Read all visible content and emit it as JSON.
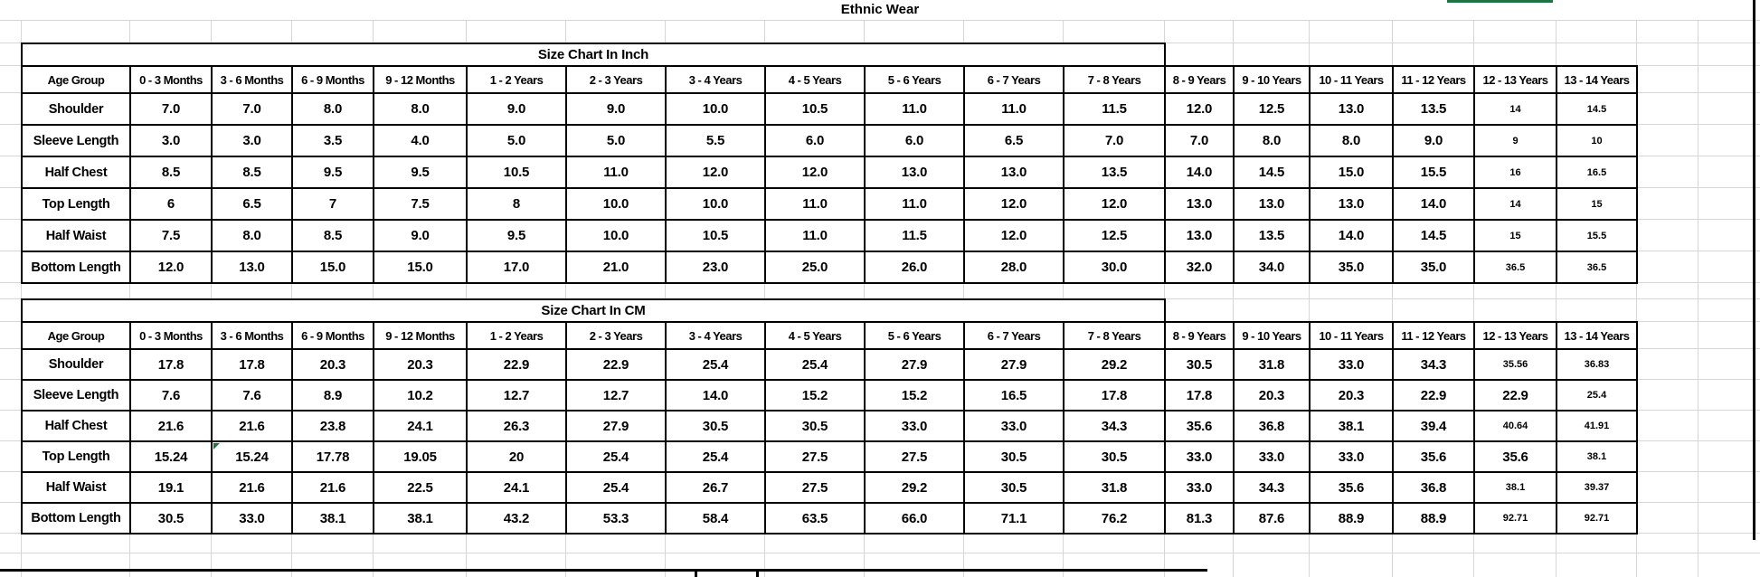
{
  "page": {
    "title": "Ethnic Wear"
  },
  "colors": {
    "accent_green": "#217346",
    "grid_line": "#d6d6d6",
    "table_border": "#000000",
    "text": "#000000"
  },
  "tables": [
    {
      "title": "Size Chart In Inch",
      "columns": [
        "Age Group",
        "0 - 3 Months",
        "3 - 6 Months",
        "6 - 9 Months",
        "9 - 12 Months",
        "1 - 2 Years",
        "2 - 3 Years",
        "3 - 4 Years",
        "4 - 5 Years",
        "5 - 6 Years",
        "6 - 7 Years",
        "7 - 8 Years",
        "8 - 9 Years",
        "9 - 10 Years",
        "10 - 11 Years",
        "11 - 12 Years",
        "12 - 13 Years",
        "13 - 14 Years"
      ],
      "rows": [
        {
          "label": "Shoulder",
          "values": [
            "7.0",
            "7.0",
            "8.0",
            "8.0",
            "9.0",
            "9.0",
            "10.0",
            "10.5",
            "11.0",
            "11.0",
            "11.5",
            "12.0",
            "12.5",
            "13.0",
            "13.5",
            "14",
            "14.5"
          ],
          "small": [
            15,
            16
          ]
        },
        {
          "label": "Sleeve Length",
          "values": [
            "3.0",
            "3.0",
            "3.5",
            "4.0",
            "5.0",
            "5.0",
            "5.5",
            "6.0",
            "6.0",
            "6.5",
            "7.0",
            "7.0",
            "8.0",
            "8.0",
            "9.0",
            "9",
            "10"
          ],
          "small": [
            15,
            16
          ]
        },
        {
          "label": "Half Chest",
          "values": [
            "8.5",
            "8.5",
            "9.5",
            "9.5",
            "10.5",
            "11.0",
            "12.0",
            "12.0",
            "13.0",
            "13.0",
            "13.5",
            "14.0",
            "14.5",
            "15.0",
            "15.5",
            "16",
            "16.5"
          ],
          "small": [
            15,
            16
          ]
        },
        {
          "label": "Top Length",
          "values": [
            "6",
            "6.5",
            "7",
            "7.5",
            "8",
            "10.0",
            "10.0",
            "11.0",
            "11.0",
            "12.0",
            "12.0",
            "13.0",
            "13.0",
            "13.0",
            "14.0",
            "14",
            "15"
          ],
          "small": [
            15,
            16
          ]
        },
        {
          "label": "Half Waist",
          "values": [
            "7.5",
            "8.0",
            "8.5",
            "9.0",
            "9.5",
            "10.0",
            "10.5",
            "11.0",
            "11.5",
            "12.0",
            "12.5",
            "13.0",
            "13.5",
            "14.0",
            "14.5",
            "15",
            "15.5"
          ],
          "small": [
            15,
            16
          ]
        },
        {
          "label": "Bottom Length",
          "values": [
            "12.0",
            "13.0",
            "15.0",
            "15.0",
            "17.0",
            "21.0",
            "23.0",
            "25.0",
            "26.0",
            "28.0",
            "30.0",
            "32.0",
            "34.0",
            "35.0",
            "35.0",
            "36.5",
            "36.5"
          ],
          "small": [
            15,
            16
          ]
        }
      ]
    },
    {
      "title": "Size Chart In CM",
      "columns": [
        "Age Group",
        "0 - 3 Months",
        "3 - 6 Months",
        "6 - 9 Months",
        "9 - 12 Months",
        "1 - 2 Years",
        "2 - 3 Years",
        "3 - 4 Years",
        "4 - 5 Years",
        "5 - 6 Years",
        "6 - 7 Years",
        "7 - 8 Years",
        "8 - 9 Years",
        "9 - 10 Years",
        "10 - 11 Years",
        "11 - 12 Years",
        "12 - 13 Years",
        "13 - 14 Years"
      ],
      "rows": [
        {
          "label": "Shoulder",
          "values": [
            "17.8",
            "17.8",
            "20.3",
            "20.3",
            "22.9",
            "22.9",
            "25.4",
            "25.4",
            "27.9",
            "27.9",
            "29.2",
            "30.5",
            "31.8",
            "33.0",
            "34.3",
            "35.56",
            "36.83"
          ],
          "small": [
            15,
            16
          ]
        },
        {
          "label": "Sleeve Length",
          "values": [
            "7.6",
            "7.6",
            "8.9",
            "10.2",
            "12.7",
            "12.7",
            "14.0",
            "15.2",
            "15.2",
            "16.5",
            "17.8",
            "17.8",
            "20.3",
            "20.3",
            "22.9",
            "22.9",
            "25.4"
          ],
          "small": [
            16
          ]
        },
        {
          "label": "Half Chest",
          "values": [
            "21.6",
            "21.6",
            "23.8",
            "24.1",
            "26.3",
            "27.9",
            "30.5",
            "30.5",
            "33.0",
            "33.0",
            "34.3",
            "35.6",
            "36.8",
            "38.1",
            "39.4",
            "40.64",
            "41.91"
          ],
          "small": [
            15,
            16
          ]
        },
        {
          "label": "Top Length",
          "values": [
            "15.24",
            "15.24",
            "17.78",
            "19.05",
            "20",
            "25.4",
            "25.4",
            "27.5",
            "27.5",
            "30.5",
            "30.5",
            "33.0",
            "33.0",
            "33.0",
            "35.6",
            "35.6",
            "38.1"
          ],
          "small": [
            16
          ],
          "indicator_cell": 1
        },
        {
          "label": "Half Waist",
          "values": [
            "19.1",
            "21.6",
            "21.6",
            "22.5",
            "24.1",
            "25.4",
            "26.7",
            "27.5",
            "29.2",
            "30.5",
            "31.8",
            "33.0",
            "34.3",
            "35.6",
            "36.8",
            "38.1",
            "39.37"
          ],
          "small": [
            15,
            16
          ]
        },
        {
          "label": "Bottom Length",
          "values": [
            "30.5",
            "33.0",
            "38.1",
            "38.1",
            "43.2",
            "53.3",
            "58.4",
            "63.5",
            "66.0",
            "71.1",
            "76.2",
            "81.3",
            "87.6",
            "88.9",
            "88.9",
            "92.71",
            "92.71"
          ],
          "small": [
            15,
            16
          ]
        }
      ]
    }
  ]
}
